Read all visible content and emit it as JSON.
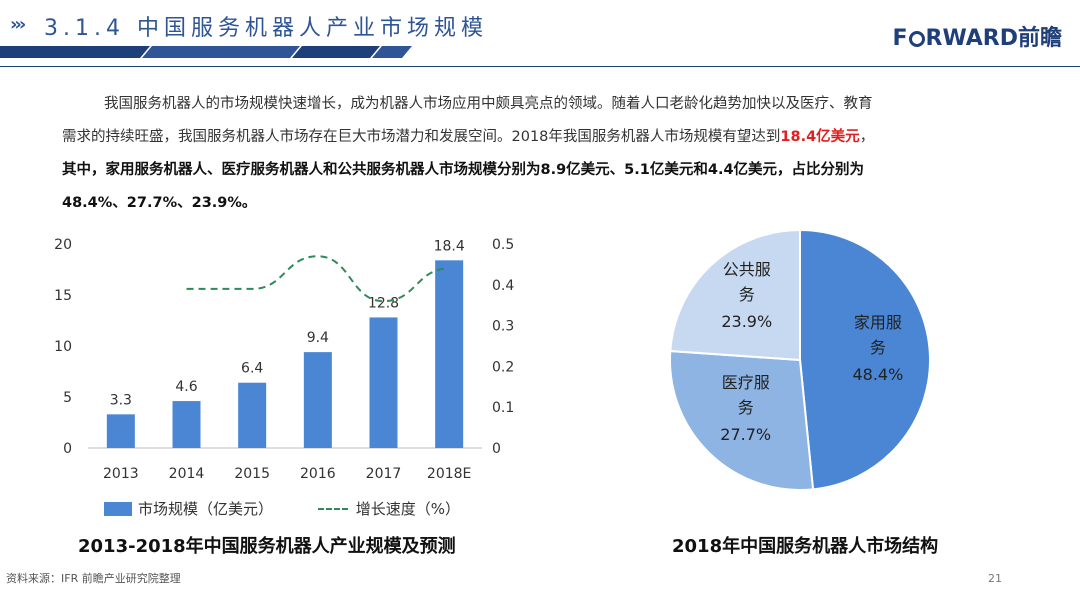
{
  "header": {
    "title": "3.1.4 中国服务机器人产业市场规模",
    "logo_text_1": "F",
    "logo_text_2": "RWARD前瞻"
  },
  "paragraph": {
    "line1": "我国服务机器人的市场规模快速增长，成为机器人市场应用中颇具亮点的领域。随着人口老龄化趋势加快以及医疗、教育",
    "line2_a": "需求的持续旺盛，我国服务机器人市场存在巨大市场潜力和发展空间。2018年我国服务机器人市场规模有望达到",
    "line2_red": "18.4亿美元",
    "line2_b": "，",
    "line3": "其中，家用服务机器人、医疗服务机器人和公共服务机器人市场规模分别为8.9亿美元、5.1亿美元和4.4亿美元，占比分别为",
    "line4": "48.4%、27.7%、23.9%。"
  },
  "captions": {
    "bar": "2013-2018年中国服务机器人产业规模及预测",
    "pie": "2018年中国服务机器人市场结构"
  },
  "footer": {
    "source": "资料来源：IFR 前瞻产业研究院整理",
    "page": "21"
  },
  "chart_data": [
    {
      "type": "bar",
      "categories": [
        "2013",
        "2014",
        "2015",
        "2016",
        "2017",
        "2018E"
      ],
      "series": [
        {
          "name": "市场规模（亿美元）",
          "values": [
            3.3,
            4.6,
            6.4,
            9.4,
            12.8,
            18.4
          ],
          "color": "#4a86d4",
          "axis": "left"
        },
        {
          "name": "增长速度（%）",
          "type": "line",
          "values": [
            null,
            0.39,
            0.39,
            0.47,
            0.36,
            0.44
          ],
          "color": "#2e8b57",
          "axis": "right"
        }
      ],
      "ylim": [
        0,
        20
      ],
      "yticks": [
        "0",
        "5",
        "10",
        "15",
        "20"
      ],
      "y2lim": [
        0,
        0.5
      ],
      "y2ticks": [
        "0",
        "0.1",
        "0.2",
        "0.3",
        "0.4",
        "0.5"
      ],
      "legend": "bottom"
    },
    {
      "type": "pie",
      "slices": [
        {
          "label": "家用服务",
          "value": 48.4,
          "display": "48.4%",
          "color": "#4a86d4"
        },
        {
          "label": "医疗服务",
          "value": 27.7,
          "display": "27.7%",
          "color": "#8db4e2"
        },
        {
          "label": "公共服务",
          "value": 23.9,
          "display": "23.9%",
          "color": "#c6d9f1"
        }
      ]
    }
  ]
}
